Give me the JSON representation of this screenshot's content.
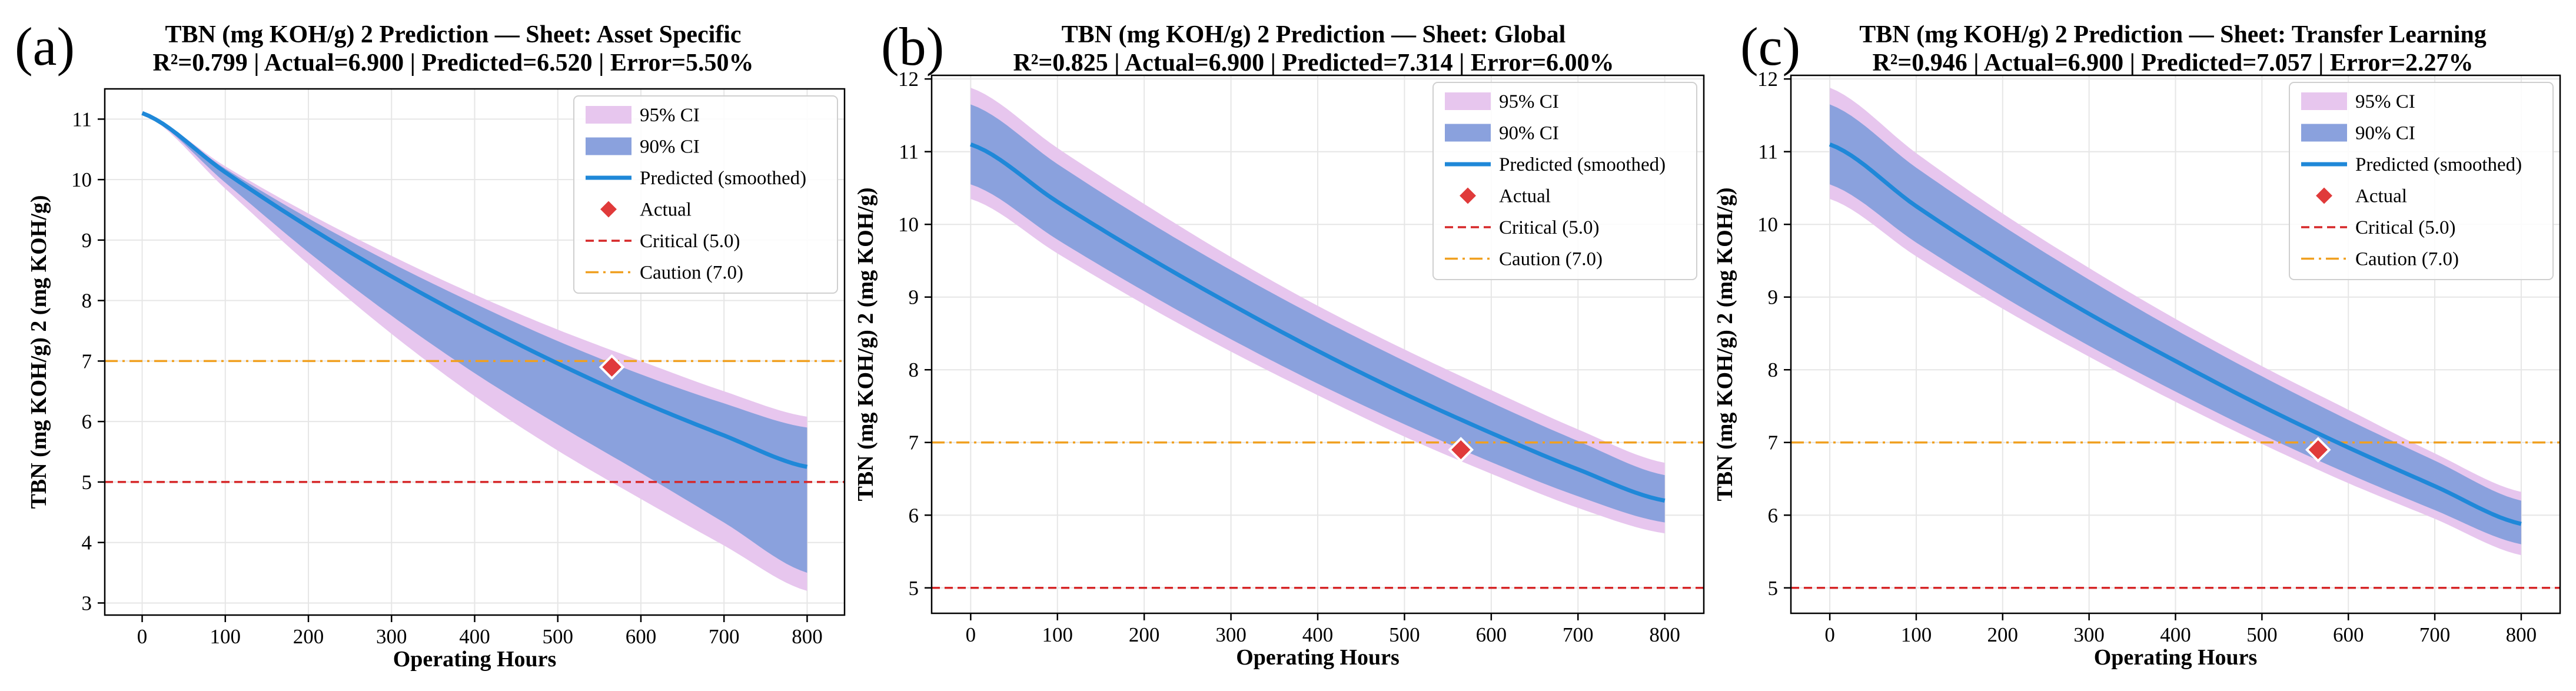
{
  "figure": {
    "chart_data": [
      {
        "type": "line",
        "panel_label": "(a)",
        "title": "TBN (mg KOH/g) 2 Prediction — Sheet: Asset Specific",
        "subtitle": "R²=0.799 | Actual=6.900 | Predicted=6.520 | Error=5.50%",
        "xlabel": "Operating Hours",
        "ylabel": "TBN (mg KOH/g) 2 (mg KOH/g)",
        "xlim": [
          -45,
          845
        ],
        "ylim": [
          2.8,
          11.5
        ],
        "xticks": [
          "0",
          "100",
          "200",
          "300",
          "400",
          "500",
          "600",
          "700",
          "800"
        ],
        "yticks": [
          "3",
          "4",
          "5",
          "6",
          "7",
          "8",
          "9",
          "10",
          "11"
        ],
        "grid": true,
        "legend_position": "top-right",
        "x": [
          0,
          100,
          200,
          300,
          400,
          500,
          600,
          700,
          800
        ],
        "series": [
          {
            "name": "Predicted (smoothed)",
            "values": [
              11.1,
              10.12,
              9.22,
              8.4,
              7.65,
              6.96,
              6.33,
              5.77,
              5.25
            ]
          },
          {
            "name": "90% CI",
            "lower": [
              11.1,
              9.95,
              8.8,
              7.75,
              6.8,
              5.95,
              5.15,
              4.33,
              3.5
            ],
            "upper": [
              11.1,
              10.18,
              9.36,
              8.62,
              7.95,
              7.33,
              6.78,
              6.3,
              5.9
            ]
          },
          {
            "name": "95% CI",
            "lower": [
              11.1,
              9.85,
              8.6,
              7.45,
              6.42,
              5.52,
              4.72,
              3.95,
              3.2
            ],
            "upper": [
              11.1,
              10.22,
              9.44,
              8.74,
              8.1,
              7.52,
              7.0,
              6.5,
              6.08
            ]
          }
        ],
        "actual": {
          "name": "Actual",
          "x": 565,
          "y": 6.9
        },
        "reference_lines": [
          {
            "name": "Critical (5.0)",
            "y": 5.0,
            "color": "#d62728",
            "style": "dashed"
          },
          {
            "name": "Caution (7.0)",
            "y": 7.0,
            "color": "#f0a020",
            "style": "dashdot"
          }
        ]
      },
      {
        "type": "line",
        "panel_label": "(b)",
        "title": "TBN (mg KOH/g) 2 Prediction — Sheet: Global",
        "subtitle": "R²=0.825 | Actual=6.900 | Predicted=7.314 | Error=6.00%",
        "xlabel": "Operating Hours",
        "ylabel": "TBN (mg KOH/g) 2 (mg KOH/g)",
        "xlim": [
          -45,
          845
        ],
        "ylim": [
          4.65,
          12.05
        ],
        "xticks": [
          "0",
          "100",
          "200",
          "300",
          "400",
          "500",
          "600",
          "700",
          "800"
        ],
        "yticks": [
          "5",
          "6",
          "7",
          "8",
          "9",
          "10",
          "11",
          "12"
        ],
        "grid": true,
        "legend_position": "top-right",
        "x": [
          0,
          100,
          200,
          300,
          400,
          500,
          600,
          700,
          800
        ],
        "series": [
          {
            "name": "Predicted (smoothed)",
            "values": [
              11.1,
              10.31,
              9.58,
              8.9,
              8.26,
              7.67,
              7.13,
              6.63,
              6.2
            ]
          },
          {
            "name": "90% CI",
            "lower": [
              10.55,
              9.79,
              9.08,
              8.42,
              7.81,
              7.25,
              6.73,
              6.26,
              5.9
            ],
            "upper": [
              11.65,
              10.83,
              10.07,
              9.37,
              8.72,
              8.12,
              7.55,
              7.02,
              6.55
            ]
          },
          {
            "name": "95% CI",
            "lower": [
              10.35,
              9.6,
              8.9,
              8.25,
              7.65,
              7.08,
              6.57,
              6.1,
              5.75
            ],
            "upper": [
              11.88,
              11.05,
              10.28,
              9.55,
              8.88,
              8.28,
              7.72,
              7.18,
              6.72
            ]
          }
        ],
        "actual": {
          "name": "Actual",
          "x": 565,
          "y": 6.9
        },
        "reference_lines": [
          {
            "name": "Critical (5.0)",
            "y": 5.0,
            "color": "#d62728",
            "style": "dashed"
          },
          {
            "name": "Caution (7.0)",
            "y": 7.0,
            "color": "#f0a020",
            "style": "dashdot"
          }
        ]
      },
      {
        "type": "line",
        "panel_label": "(c)",
        "title": "TBN (mg KOH/g) 2 Prediction — Sheet: Transfer Learning",
        "subtitle": "R²=0.946 | Actual=6.900 | Predicted=7.057 | Error=2.27%",
        "xlabel": "Operating Hours",
        "ylabel": "TBN (mg KOH/g) 2 (mg KOH/g)",
        "xlim": [
          -45,
          845
        ],
        "ylim": [
          4.65,
          12.05
        ],
        "xticks": [
          "0",
          "100",
          "200",
          "300",
          "400",
          "500",
          "600",
          "700",
          "800"
        ],
        "yticks": [
          "5",
          "6",
          "7",
          "8",
          "9",
          "10",
          "11",
          "12"
        ],
        "grid": true,
        "legend_position": "top-right",
        "x": [
          0,
          100,
          200,
          300,
          400,
          500,
          600,
          700,
          800
        ],
        "series": [
          {
            "name": "Predicted (smoothed)",
            "values": [
              11.1,
              10.25,
              9.48,
              8.77,
              8.12,
              7.5,
              6.93,
              6.4,
              5.88
            ]
          },
          {
            "name": "90% CI",
            "lower": [
              10.55,
              9.75,
              9.01,
              8.33,
              7.7,
              7.11,
              6.57,
              6.07,
              5.6
            ],
            "upper": [
              11.65,
              10.78,
              9.98,
              9.24,
              8.55,
              7.91,
              7.31,
              6.75,
              6.2
            ]
          },
          {
            "name": "95% CI",
            "lower": [
              10.35,
              9.56,
              8.84,
              8.18,
              7.56,
              6.98,
              6.44,
              5.95,
              5.45
            ],
            "upper": [
              11.88,
              10.98,
              10.15,
              9.4,
              8.7,
              8.05,
              7.45,
              6.85,
              6.32
            ]
          }
        ],
        "actual": {
          "name": "Actual",
          "x": 565,
          "y": 6.9
        },
        "reference_lines": [
          {
            "name": "Critical (5.0)",
            "y": 5.0,
            "color": "#d62728",
            "style": "dashed"
          },
          {
            "name": "Caution (7.0)",
            "y": 7.0,
            "color": "#f0a020",
            "style": "dashdot"
          }
        ]
      }
    ],
    "colors": {
      "ci95": "#e7c6ee",
      "ci90": "#8aa1dd",
      "predicted": "#1f88d8",
      "actual": "#e03a3a",
      "grid": "#e6e6e6"
    }
  }
}
